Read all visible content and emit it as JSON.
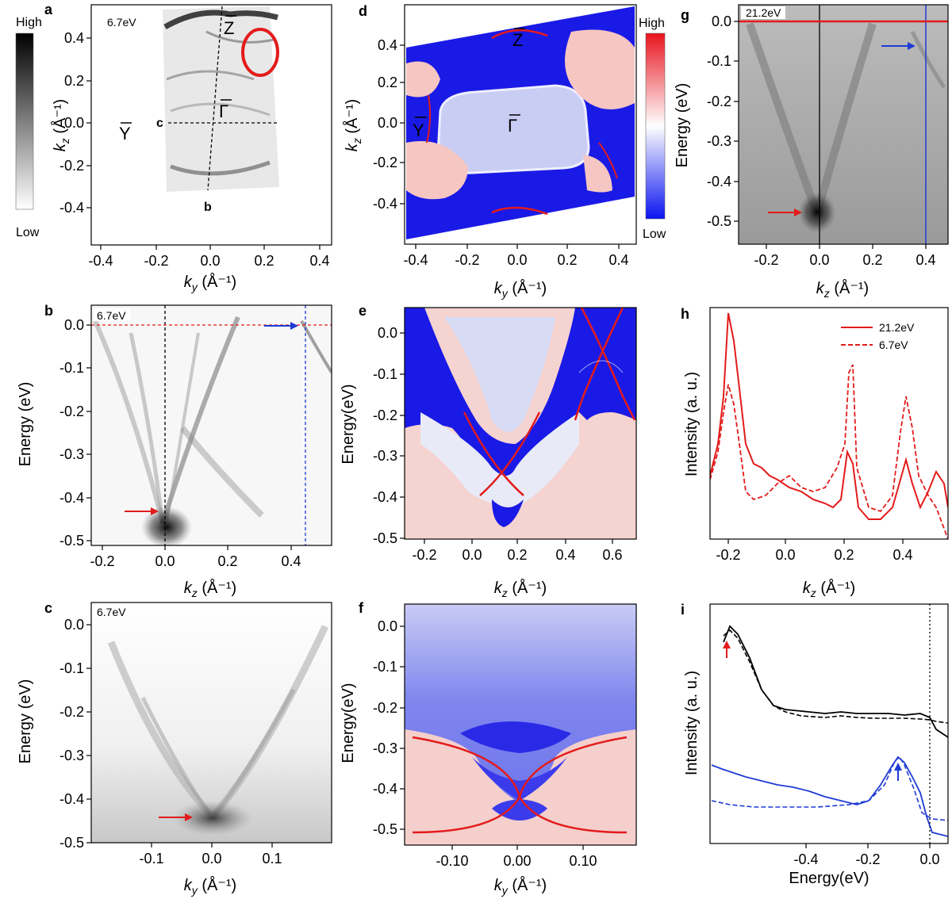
{
  "colors": {
    "black": "#000000",
    "red": "#e31b1b",
    "blue": "#1f3bd6",
    "dark_blue": "#0a0adc",
    "light_pink": "#f6d8d6",
    "white": "#ffffff"
  },
  "colorbars": {
    "gray": {
      "high": "High",
      "low": "Low"
    },
    "redblue": {
      "high": "High",
      "low": "Low"
    }
  },
  "panels": {
    "a": {
      "letter": "a",
      "photon": "6.7eV",
      "xlabel_main": "k",
      "xlabel_sub": "y",
      "xlabel_unit": " (Å⁻¹)",
      "ylabel_main": "k",
      "ylabel_sub": "z",
      "ylabel_unit": " (Å⁻¹)",
      "x_ticks": [
        "-0.4",
        "-0.2",
        "0.0",
        "0.2",
        "0.4"
      ],
      "y_ticks": [
        "0.4",
        "0.2",
        "0.0",
        "-0.2",
        "-0.4"
      ],
      "cut_c": "c",
      "cut_b": "b",
      "pt_Y": "Y",
      "pt_Gamma": "Γ",
      "pt_Z": "Z"
    },
    "b": {
      "letter": "b",
      "photon": "6.7eV",
      "xlabel_main": "k",
      "xlabel_sub": "z",
      "xlabel_unit": " (Å⁻¹)",
      "ylabel": "Energy (eV)",
      "x_ticks": [
        "-0.2",
        "0.0",
        "0.2",
        "0.4"
      ],
      "y_ticks": [
        "0.0",
        "-0.1",
        "-0.2",
        "-0.3",
        "-0.4",
        "-0.5"
      ]
    },
    "c": {
      "letter": "c",
      "photon": "6.7eV",
      "xlabel_main": "k",
      "xlabel_sub": "y",
      "xlabel_unit": " (Å⁻¹)",
      "ylabel": "Energy (eV)",
      "x_ticks": [
        "-0.1",
        "0.0",
        "0.1"
      ],
      "y_ticks": [
        "0.0",
        "-0.1",
        "-0.2",
        "-0.3",
        "-0.4",
        "-0.5"
      ]
    },
    "d": {
      "letter": "d",
      "xlabel_main": "k",
      "xlabel_sub": "y",
      "xlabel_unit": " (Å⁻¹)",
      "ylabel_main": "k",
      "ylabel_sub": "z",
      "ylabel_unit": " (Å⁻¹)",
      "x_ticks": [
        "-0.4",
        "-0.2",
        "0.0",
        "0.2",
        "0.4"
      ],
      "y_ticks": [
        "0.4",
        "0.2",
        "0.0",
        "-0.2",
        "-0.4"
      ],
      "pt_Y": "Y",
      "pt_Gamma": "Γ",
      "pt_Z": "Z"
    },
    "e": {
      "letter": "e",
      "xlabel_main": "k",
      "xlabel_sub": "z",
      "xlabel_unit": " (Å⁻¹)",
      "ylabel": "Energy(eV)",
      "x_ticks": [
        "-0.2",
        "0.0",
        "0.2",
        "0.4",
        "0.6"
      ],
      "y_ticks": [
        "0.0",
        "-0.1",
        "-0.2",
        "-0.3",
        "-0.4",
        "-0.5"
      ]
    },
    "f": {
      "letter": "f",
      "xlabel_main": "k",
      "xlabel_sub": "y",
      "xlabel_unit": " (Å⁻¹)",
      "ylabel": "Energy(eV)",
      "x_ticks": [
        "-0.10",
        "0.00",
        "0.10"
      ],
      "y_ticks": [
        "0.0",
        "-0.1",
        "-0.2",
        "-0.3",
        "-0.4",
        "-0.5"
      ]
    },
    "g": {
      "letter": "g",
      "photon": "21.2eV",
      "xlabel_main": "k",
      "xlabel_sub": "z",
      "xlabel_unit": " (Å⁻¹)",
      "ylabel": "Energy (eV)",
      "x_ticks": [
        "-0.2",
        "0.0",
        "0.2",
        "0.4"
      ],
      "y_ticks": [
        "0.0",
        "-0.1",
        "-0.2",
        "-0.3",
        "-0.4",
        "-0.5"
      ]
    },
    "h": {
      "letter": "h",
      "xlabel_main": "k",
      "xlabel_sub": "z",
      "xlabel_unit": " (Å⁻¹)",
      "ylabel": "Intensity (a. u.)",
      "x_ticks": [
        "-0.2",
        "0.0",
        "0.2",
        "0.4"
      ],
      "legend": [
        "21.2eV",
        "6.7eV"
      ]
    },
    "i": {
      "letter": "i",
      "xlabel": "Energy(eV)",
      "ylabel": "Intensity (a. u.)",
      "x_ticks": [
        "-0.4",
        "-0.2",
        "0.0"
      ]
    }
  }
}
